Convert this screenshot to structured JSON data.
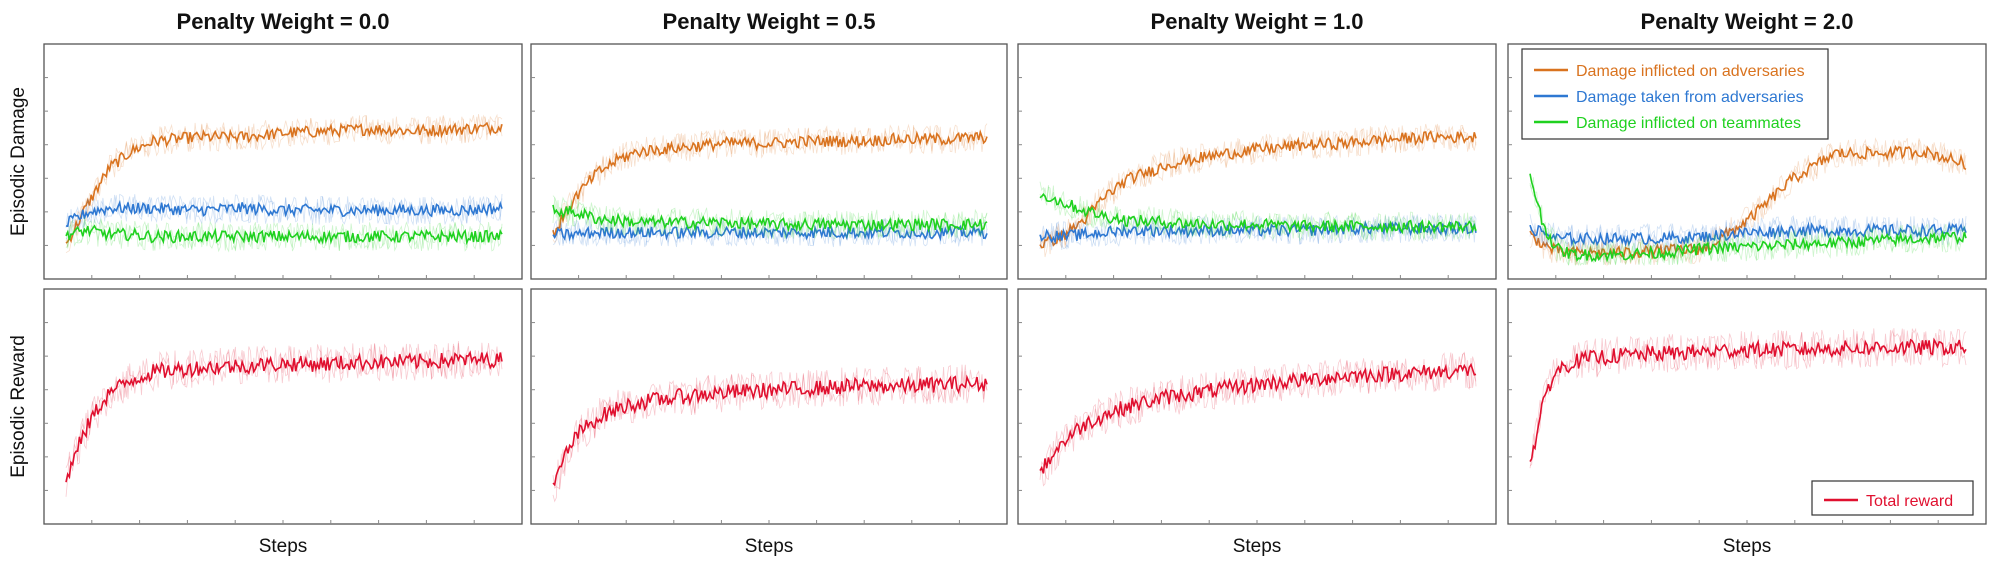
{
  "colors": {
    "inflicted_adversaries": "#D9731F",
    "taken_adversaries": "#2E78D2",
    "inflicted_teammates": "#1FD11F",
    "total_reward": "#E0102F",
    "frame": "#555555"
  },
  "row_labels": [
    "Episodic Damage",
    "Episodic Reward"
  ],
  "legends": {
    "damage": [
      {
        "label": "Damage inflicted on adversaries",
        "color_key": "inflicted_adversaries"
      },
      {
        "label": "Damage taken from adversaries",
        "color_key": "taken_adversaries"
      },
      {
        "label": "Damage inflicted on teammates",
        "color_key": "inflicted_teammates"
      }
    ],
    "reward": [
      {
        "label": "Total reward",
        "color_key": "total_reward"
      }
    ]
  },
  "chart_data": [
    {
      "type": "line",
      "title": "Penalty Weight = 0.0",
      "ylabel": "Episodic Damage",
      "xlabel": "",
      "x": [
        0,
        0.05,
        0.1,
        0.15,
        0.2,
        0.3,
        0.4,
        0.5,
        0.6,
        0.7,
        0.8,
        0.9,
        1.0
      ],
      "series": [
        {
          "color_key": "inflicted_adversaries",
          "values": [
            0.1,
            0.3,
            0.48,
            0.56,
            0.61,
            0.63,
            0.63,
            0.65,
            0.66,
            0.67,
            0.66,
            0.67,
            0.68
          ]
        },
        {
          "color_key": "taken_adversaries",
          "values": [
            0.2,
            0.26,
            0.28,
            0.28,
            0.28,
            0.27,
            0.28,
            0.27,
            0.27,
            0.27,
            0.27,
            0.27,
            0.28
          ]
        },
        {
          "color_key": "inflicted_teammates",
          "values": [
            0.15,
            0.17,
            0.15,
            0.15,
            0.14,
            0.14,
            0.14,
            0.14,
            0.14,
            0.14,
            0.14,
            0.14,
            0.14
          ]
        }
      ]
    },
    {
      "type": "line",
      "title": "Penalty Weight = 0.5",
      "ylabel": "",
      "xlabel": "",
      "x": [
        0,
        0.05,
        0.1,
        0.15,
        0.2,
        0.3,
        0.4,
        0.5,
        0.6,
        0.7,
        0.8,
        0.9,
        1.0
      ],
      "series": [
        {
          "color_key": "inflicted_adversaries",
          "values": [
            0.15,
            0.33,
            0.45,
            0.52,
            0.56,
            0.58,
            0.6,
            0.6,
            0.61,
            0.61,
            0.62,
            0.62,
            0.63
          ]
        },
        {
          "color_key": "taken_adversaries",
          "values": [
            0.15,
            0.15,
            0.16,
            0.16,
            0.16,
            0.16,
            0.16,
            0.16,
            0.16,
            0.16,
            0.16,
            0.16,
            0.16
          ]
        },
        {
          "color_key": "inflicted_teammates",
          "values": [
            0.27,
            0.26,
            0.23,
            0.22,
            0.21,
            0.21,
            0.21,
            0.2,
            0.2,
            0.2,
            0.2,
            0.2,
            0.2
          ]
        }
      ]
    },
    {
      "type": "line",
      "title": "Penalty Weight = 1.0",
      "ylabel": "",
      "xlabel": "",
      "x": [
        0,
        0.05,
        0.1,
        0.15,
        0.2,
        0.3,
        0.4,
        0.5,
        0.6,
        0.7,
        0.8,
        0.9,
        1.0
      ],
      "series": [
        {
          "color_key": "inflicted_adversaries",
          "values": [
            0.1,
            0.14,
            0.22,
            0.34,
            0.42,
            0.5,
            0.54,
            0.57,
            0.59,
            0.6,
            0.62,
            0.63,
            0.63
          ]
        },
        {
          "color_key": "taken_adversaries",
          "values": [
            0.15,
            0.14,
            0.15,
            0.16,
            0.17,
            0.17,
            0.17,
            0.17,
            0.17,
            0.18,
            0.18,
            0.18,
            0.18
          ]
        },
        {
          "color_key": "inflicted_teammates",
          "values": [
            0.35,
            0.31,
            0.27,
            0.24,
            0.22,
            0.21,
            0.2,
            0.2,
            0.19,
            0.19,
            0.19,
            0.19,
            0.19
          ]
        }
      ]
    },
    {
      "type": "line",
      "title": "Penalty Weight = 2.0",
      "ylabel": "",
      "xlabel": "",
      "x": [
        0,
        0.03,
        0.06,
        0.1,
        0.2,
        0.3,
        0.4,
        0.5,
        0.6,
        0.7,
        0.8,
        0.9,
        1.0
      ],
      "series": [
        {
          "color_key": "inflicted_adversaries",
          "values": [
            0.15,
            0.1,
            0.07,
            0.06,
            0.06,
            0.07,
            0.08,
            0.22,
            0.42,
            0.55,
            0.55,
            0.56,
            0.5
          ]
        },
        {
          "color_key": "taken_adversaries",
          "values": [
            0.18,
            0.16,
            0.13,
            0.13,
            0.13,
            0.13,
            0.14,
            0.16,
            0.17,
            0.17,
            0.17,
            0.17,
            0.17
          ]
        },
        {
          "color_key": "inflicted_teammates",
          "values": [
            0.45,
            0.2,
            0.08,
            0.05,
            0.05,
            0.06,
            0.08,
            0.09,
            0.1,
            0.11,
            0.12,
            0.13,
            0.14
          ]
        }
      ]
    },
    {
      "type": "line",
      "title": "",
      "ylabel": "Episodic Reward",
      "xlabel": "Steps",
      "x": [
        0,
        0.03,
        0.06,
        0.1,
        0.15,
        0.2,
        0.3,
        0.4,
        0.5,
        0.6,
        0.7,
        0.8,
        0.9,
        1.0
      ],
      "series": [
        {
          "color_key": "total_reward",
          "values": [
            0.15,
            0.32,
            0.46,
            0.58,
            0.64,
            0.68,
            0.7,
            0.71,
            0.72,
            0.72,
            0.73,
            0.73,
            0.74,
            0.74
          ]
        }
      ]
    },
    {
      "type": "line",
      "title": "",
      "ylabel": "",
      "xlabel": "Steps",
      "x": [
        0,
        0.03,
        0.06,
        0.1,
        0.15,
        0.2,
        0.3,
        0.4,
        0.5,
        0.6,
        0.7,
        0.8,
        0.9,
        1.0
      ],
      "series": [
        {
          "color_key": "total_reward",
          "values": [
            0.1,
            0.28,
            0.38,
            0.45,
            0.5,
            0.53,
            0.56,
            0.58,
            0.59,
            0.6,
            0.61,
            0.61,
            0.62,
            0.62
          ]
        }
      ]
    },
    {
      "type": "line",
      "title": "",
      "ylabel": "",
      "xlabel": "Steps",
      "x": [
        0,
        0.03,
        0.06,
        0.1,
        0.15,
        0.2,
        0.3,
        0.4,
        0.5,
        0.6,
        0.7,
        0.8,
        0.9,
        1.0
      ],
      "series": [
        {
          "color_key": "total_reward",
          "values": [
            0.18,
            0.28,
            0.35,
            0.42,
            0.47,
            0.51,
            0.56,
            0.59,
            0.62,
            0.64,
            0.66,
            0.67,
            0.68,
            0.69
          ]
        }
      ]
    },
    {
      "type": "line",
      "title": "",
      "ylabel": "",
      "xlabel": "Steps",
      "x": [
        0,
        0.02,
        0.04,
        0.06,
        0.08,
        0.1,
        0.15,
        0.2,
        0.3,
        0.4,
        0.5,
        0.6,
        0.8,
        1.0
      ],
      "series": [
        {
          "color_key": "total_reward",
          "values": [
            0.22,
            0.42,
            0.6,
            0.68,
            0.71,
            0.73,
            0.75,
            0.76,
            0.77,
            0.78,
            0.79,
            0.79,
            0.8,
            0.8
          ]
        }
      ]
    }
  ]
}
